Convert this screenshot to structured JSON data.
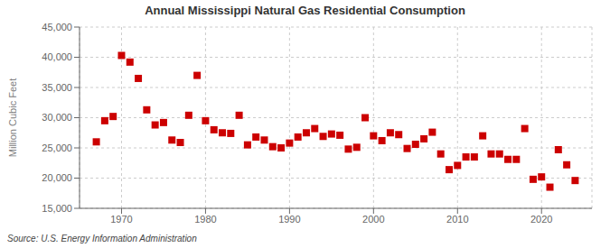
{
  "chart_data": {
    "type": "scatter",
    "title": "Annual Mississippi Natural Gas Residential Consumption",
    "ylabel": "Million Cubic Feet",
    "annotation": "Source: U.S. Energy Information Administration",
    "color": "#cc0000",
    "marker": "square",
    "grid": true,
    "x": [
      1967,
      1968,
      1969,
      1970,
      1971,
      1972,
      1973,
      1974,
      1975,
      1976,
      1977,
      1978,
      1979,
      1980,
      1981,
      1982,
      1983,
      1984,
      1985,
      1986,
      1987,
      1988,
      1989,
      1990,
      1991,
      1992,
      1993,
      1994,
      1995,
      1996,
      1997,
      1998,
      1999,
      2000,
      2001,
      2002,
      2003,
      2004,
      2005,
      2006,
      2007,
      2008,
      2009,
      2010,
      2011,
      2012,
      2013,
      2014,
      2015,
      2016,
      2017,
      2018,
      2019,
      2020,
      2021,
      2022,
      2023,
      2024
    ],
    "values": [
      26000,
      29500,
      30200,
      40300,
      39200,
      36500,
      31300,
      28800,
      29200,
      26300,
      25900,
      30400,
      37000,
      29500,
      28000,
      27500,
      27400,
      30400,
      25500,
      26800,
      26300,
      25200,
      25000,
      25800,
      26800,
      27500,
      28200,
      26900,
      27300,
      27100,
      24800,
      25100,
      30000,
      27000,
      26200,
      27500,
      27200,
      24900,
      25600,
      26500,
      27600,
      24000,
      21400,
      22100,
      23500,
      23500,
      27000,
      24000,
      24000,
      23100,
      23100,
      28200,
      19800,
      20200,
      18500,
      24700,
      22200,
      19600
    ],
    "xlim": [
      1965,
      2026
    ],
    "xticks": [
      1970,
      1980,
      1990,
      2000,
      2010,
      2020
    ],
    "ylim": [
      15000,
      45000
    ],
    "yticks": [
      {
        "value": 15000,
        "label": "15,000"
      },
      {
        "value": 20000,
        "label": "20,000"
      },
      {
        "value": 25000,
        "label": "25,000"
      },
      {
        "value": 30000,
        "label": "30,000"
      },
      {
        "value": 35000,
        "label": "35,000"
      },
      {
        "value": 40000,
        "label": "40,000"
      },
      {
        "value": 45000,
        "label": "45,000"
      }
    ]
  }
}
